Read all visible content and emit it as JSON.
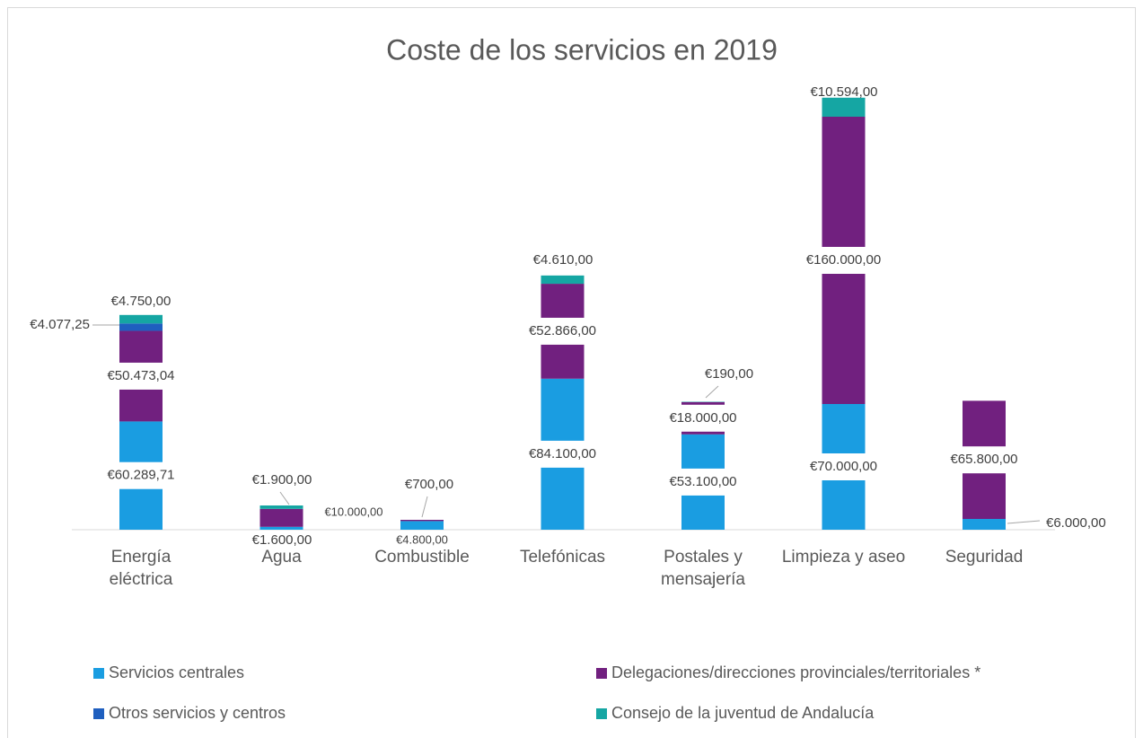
{
  "chart_data": {
    "type": "bar",
    "stacked": true,
    "title": "Coste de los servicios en 2019",
    "categories": [
      "Energía eléctrica",
      "Agua",
      "Combustible",
      "Telefónicas",
      "Postales y mensajería",
      "Limpieza y aseo",
      "Seguridad"
    ],
    "ylim": [
      0,
      240000
    ],
    "series": [
      {
        "name": "Servicios centrales",
        "color": "#1a9de1",
        "values": [
          60289.71,
          1600,
          4800,
          84100,
          53100,
          70000,
          6000
        ],
        "value_labels": [
          "€60.289,71",
          "€1.600,00",
          "€4.800,00",
          "€84.100,00",
          "€53.100,00",
          "€70.000,00",
          "€6.000,00"
        ]
      },
      {
        "name": "Delegaciones/direcciones provinciales/territoriales *",
        "color": "#71207f",
        "values": [
          50473.04,
          10000,
          700,
          52866,
          18000,
          160000,
          65800
        ],
        "value_labels": [
          "€50.473,04",
          "€10.000,00",
          "€700,00",
          "€52.866,00",
          "€18.000,00",
          "€160.000,00",
          "€65.800,00"
        ]
      },
      {
        "name": "Otros servicios y centros",
        "color": "#1f5fbf",
        "values": [
          4077.25,
          0,
          0,
          0,
          0,
          0,
          0
        ],
        "value_labels": [
          "€4.077,25",
          null,
          null,
          null,
          null,
          null,
          null
        ]
      },
      {
        "name": "Consejo de la juventud de Andalucía",
        "color": "#15a6a3",
        "values": [
          4750,
          1900,
          0,
          4610,
          190,
          10594,
          0
        ],
        "value_labels": [
          "€4.750,00",
          "€1.900,00",
          null,
          "€4.610,00",
          "€190,00",
          "€10.594,00",
          null
        ]
      }
    ],
    "legend": "bottom"
  }
}
